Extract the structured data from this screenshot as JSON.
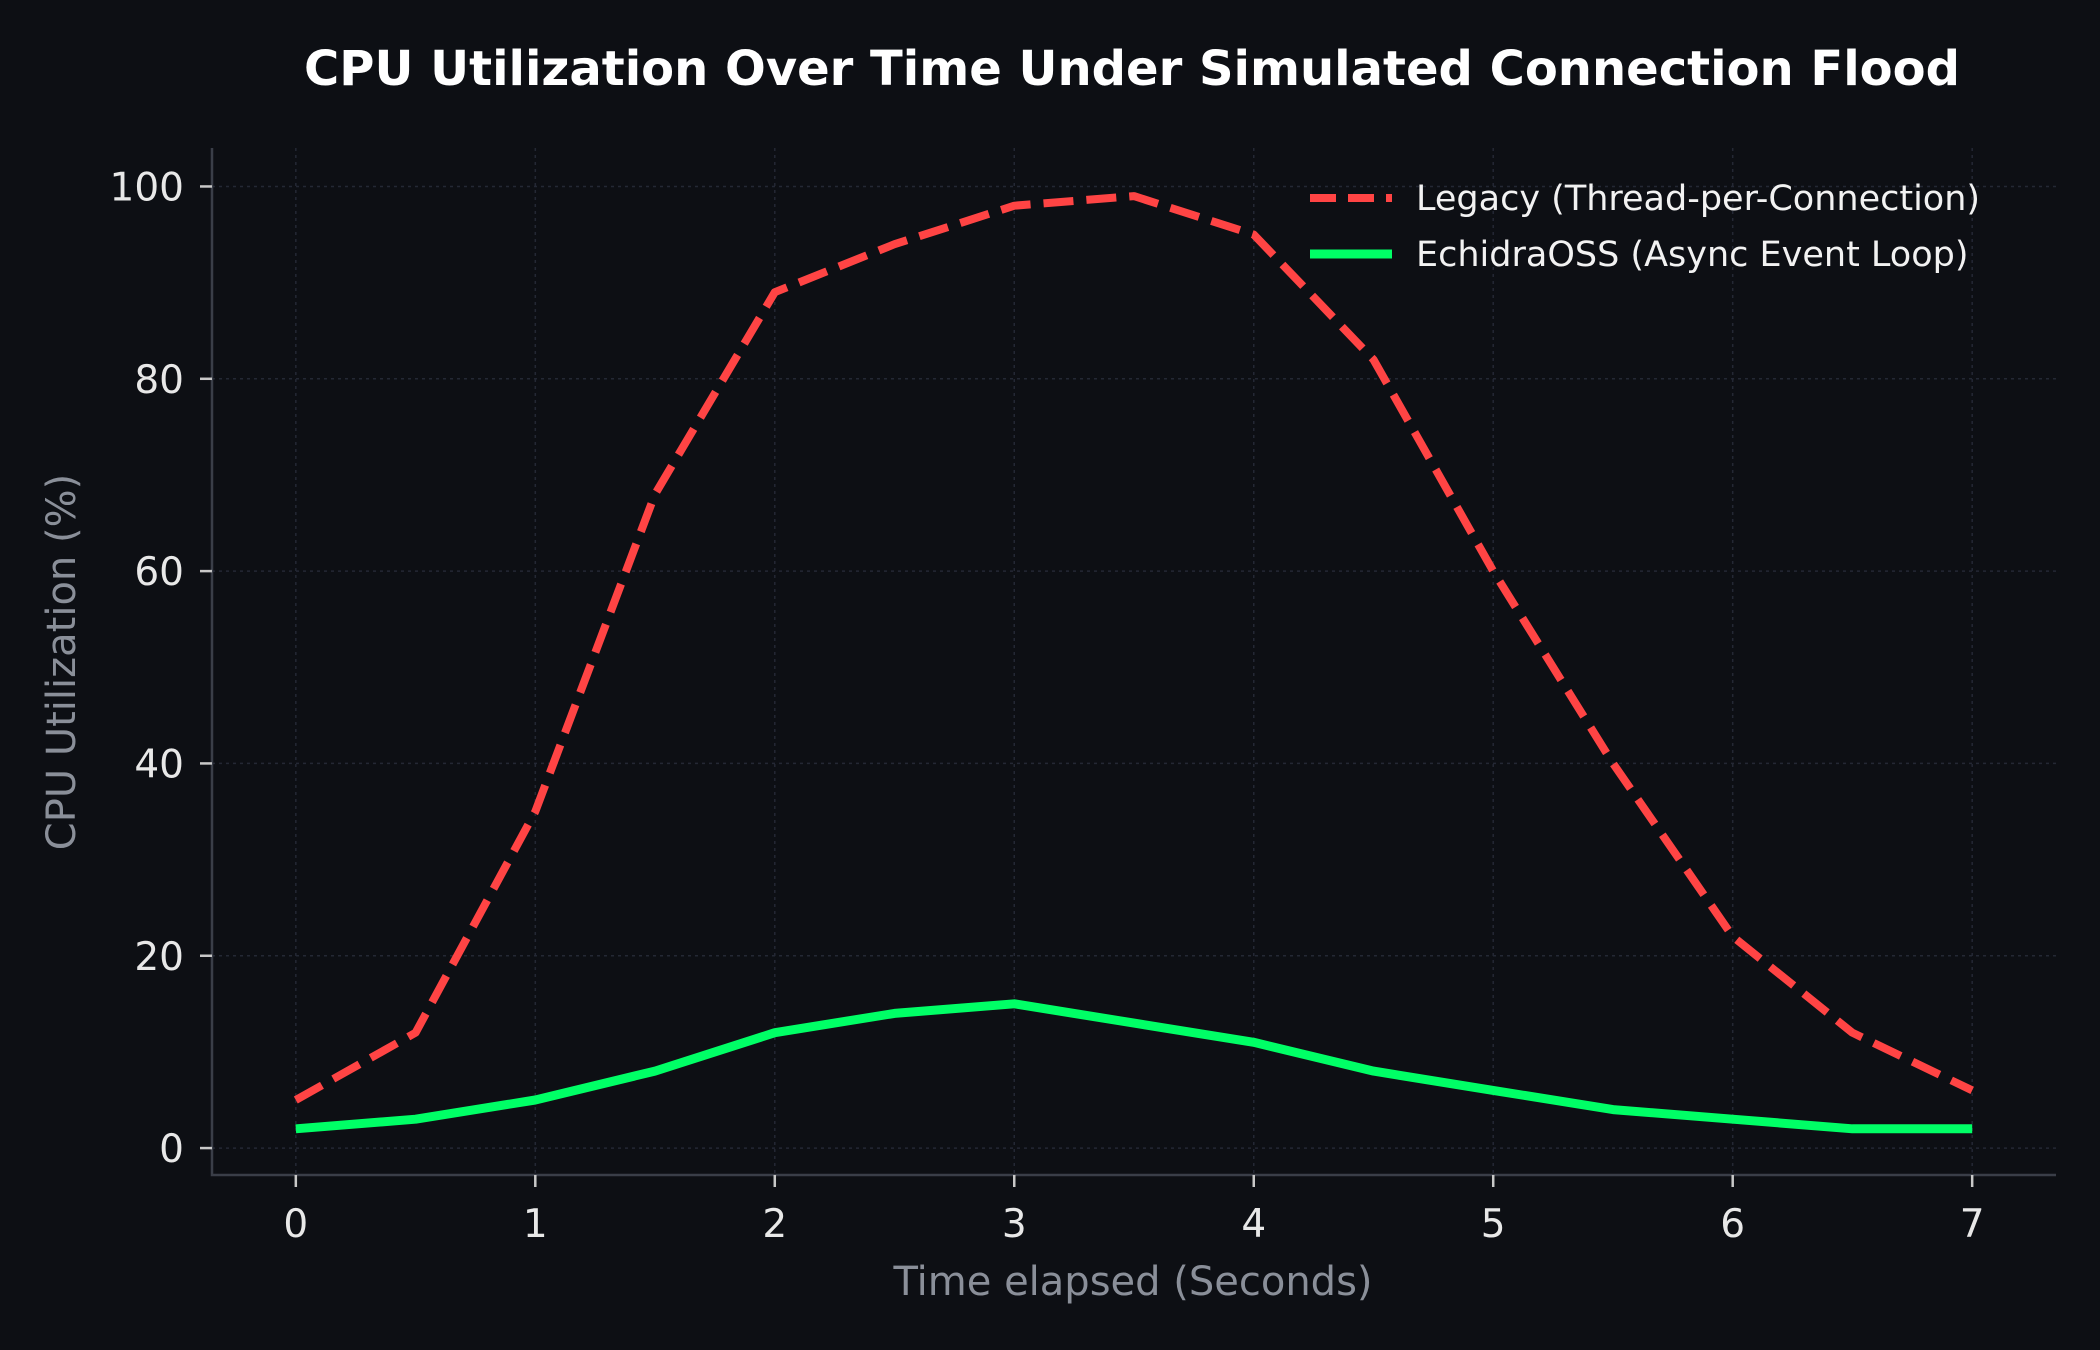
{
  "chart_data": {
    "type": "line",
    "title": "CPU Utilization Over Time Under Simulated Connection Flood",
    "xlabel": "Time elapsed (Seconds)",
    "ylabel": "CPU Utilization (%)",
    "xlim": [
      -0.35,
      7.35
    ],
    "ylim": [
      -2.8,
      104
    ],
    "xticks": [
      0,
      1,
      2,
      3,
      4,
      5,
      6,
      7
    ],
    "yticks": [
      0,
      20,
      40,
      60,
      80,
      100
    ],
    "grid": true,
    "legend_position": "top-right",
    "x": [
      0,
      0.5,
      1,
      1.5,
      2,
      2.5,
      3,
      3.5,
      4,
      4.5,
      5,
      5.5,
      6,
      6.5,
      7
    ],
    "series": [
      {
        "name": "Legacy (Thread-per-Connection)",
        "color": "#ff4444",
        "style": "dashed",
        "values": [
          5,
          12,
          35,
          68,
          89,
          94,
          98,
          99,
          95,
          82,
          60,
          40,
          22,
          12,
          6
        ]
      },
      {
        "name": "EchidraOSS (Async Event Loop)",
        "color": "#00ff66",
        "style": "solid",
        "values": [
          2,
          3,
          5,
          8,
          12,
          14,
          15,
          13,
          11,
          8,
          6,
          4,
          3,
          2,
          2
        ]
      }
    ]
  }
}
